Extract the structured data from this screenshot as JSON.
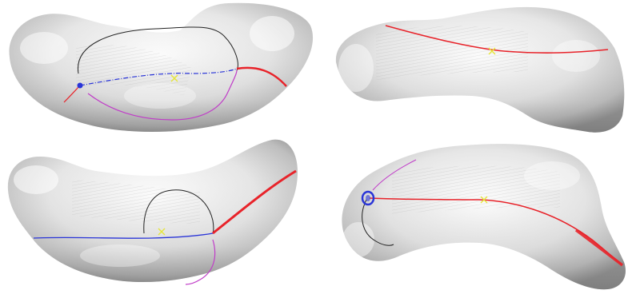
{
  "figure": {
    "panels": [
      {
        "id": "top-left",
        "view": "shape-with-curves",
        "curves": [
          "black",
          "blue",
          "magenta",
          "red"
        ],
        "markers": [
          "blue-dot",
          "yellow-cross"
        ]
      },
      {
        "id": "top-right",
        "view": "shape-with-curves",
        "curves": [
          "red"
        ],
        "markers": [
          "yellow-cross"
        ]
      },
      {
        "id": "bottom-left",
        "view": "shape-with-curves",
        "curves": [
          "black",
          "blue",
          "magenta",
          "red"
        ],
        "markers": [
          "yellow-cross"
        ]
      },
      {
        "id": "bottom-right",
        "view": "shape-with-curves",
        "curves": [
          "black",
          "red",
          "magenta"
        ],
        "markers": [
          "blue-ring",
          "yellow-cross"
        ]
      }
    ],
    "colors": {
      "background": "#ffffff",
      "surface_light": "#f4f4f4",
      "surface_mid": "#cfcfcf",
      "surface_dark": "#8a8a8a",
      "curve_red": "#e8232a",
      "curve_blue": "#2a35d8",
      "curve_black": "#222222",
      "curve_magenta": "#c03cc8",
      "marker_yellow": "#e6e63a"
    }
  }
}
